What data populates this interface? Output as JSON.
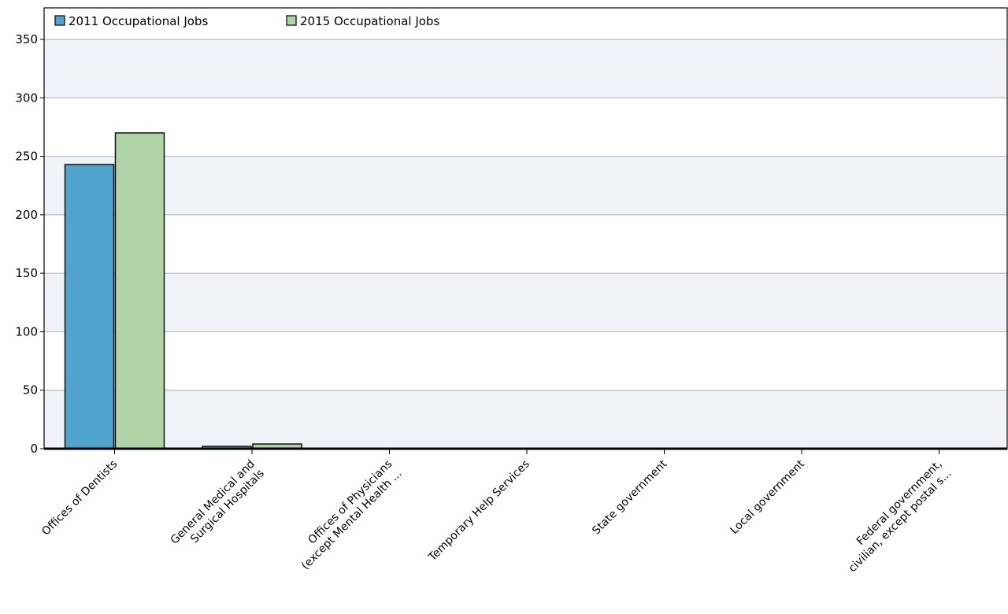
{
  "chart_data": {
    "type": "bar",
    "title": "",
    "xlabel": "",
    "ylabel": "",
    "ylim": [
      0,
      350
    ],
    "yticks": [
      0,
      50,
      100,
      150,
      200,
      250,
      300,
      350
    ],
    "grid": "horizontal",
    "banded_background": true,
    "legend_placement": "top-left",
    "categories": [
      [
        "Offices of Dentists"
      ],
      [
        "General Medical and",
        "Surgical Hospitals"
      ],
      [
        "Offices of Physicians",
        "(except Mental Health ..."
      ],
      [
        "Temporary Help Services"
      ],
      [
        "State government"
      ],
      [
        "Local government"
      ],
      [
        "Federal government,",
        "civilian, except postal s..."
      ]
    ],
    "series": [
      {
        "name": "2011 Occupational Jobs",
        "color": "#4fa3cc",
        "values": [
          243,
          2,
          0,
          0,
          0,
          0,
          0
        ]
      },
      {
        "name": "2015 Occupational Jobs",
        "color": "#b0d4a8",
        "values": [
          270,
          4,
          0,
          0,
          0,
          0,
          0
        ]
      }
    ]
  }
}
